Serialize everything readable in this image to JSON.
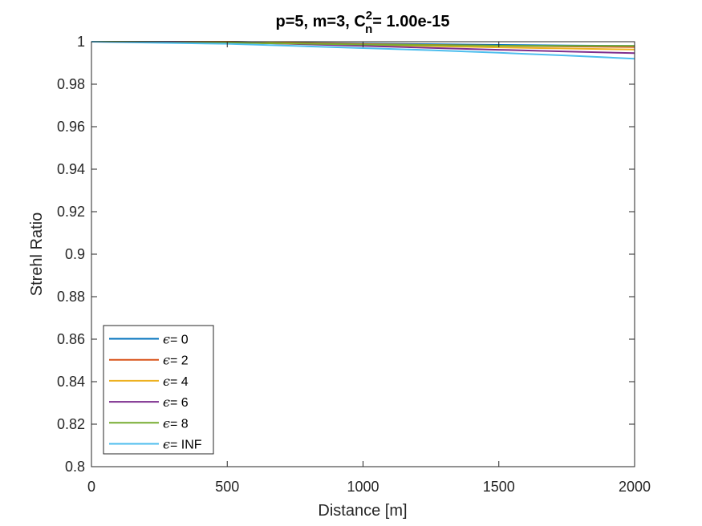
{
  "chart_data": {
    "type": "line",
    "title": {
      "prefix": "p=5, m=3, C",
      "superscript": "2",
      "subscript": "n",
      "suffix": "= 1.00e-15"
    },
    "xlabel": "Distance [m]",
    "ylabel": "Strehl Ratio",
    "xlim": [
      0,
      2000
    ],
    "ylim": [
      0.8,
      1.0
    ],
    "xticks": [
      0,
      500,
      1000,
      1500,
      2000
    ],
    "xtick_labels": [
      "0",
      "500",
      "1000",
      "1500",
      "2000"
    ],
    "yticks": [
      0.8,
      0.82,
      0.84,
      0.86,
      0.88,
      0.9,
      0.92,
      0.94,
      0.96,
      0.98,
      1.0
    ],
    "ytick_labels": [
      "0.8",
      "0.82",
      "0.84",
      "0.86",
      "0.88",
      "0.9",
      "0.92",
      "0.94",
      "0.96",
      "0.98",
      "1"
    ],
    "grid": false,
    "legend_position": "bottom-left",
    "legend_symbol": "ϵ",
    "series": [
      {
        "name": "= 0",
        "color": "#0072BD",
        "x": [
          0,
          250,
          500,
          750,
          1000,
          1250,
          1500,
          1750,
          2000
        ],
        "y": [
          1.0,
          1.0,
          1.0,
          0.9995,
          0.9991,
          0.9988,
          0.9985,
          0.9982,
          0.998
        ]
      },
      {
        "name": "= 2",
        "color": "#D95319",
        "x": [
          0,
          250,
          500,
          750,
          1000,
          1250,
          1500,
          1750,
          2000
        ],
        "y": [
          1.0,
          1.0,
          1.0,
          0.9994,
          0.9989,
          0.9985,
          0.9981,
          0.9978,
          0.9975
        ]
      },
      {
        "name": "= 4",
        "color": "#EDB120",
        "x": [
          0,
          250,
          500,
          750,
          1000,
          1250,
          1500,
          1750,
          2000
        ],
        "y": [
          1.0,
          1.0,
          0.9999,
          0.9992,
          0.9985,
          0.9979,
          0.9973,
          0.9968,
          0.9963
        ]
      },
      {
        "name": "= 6",
        "color": "#7E2F8E",
        "x": [
          0,
          250,
          500,
          750,
          1000,
          1250,
          1500,
          1750,
          2000
        ],
        "y": [
          1.0,
          1.0,
          0.9998,
          0.9989,
          0.998,
          0.9971,
          0.9962,
          0.9954,
          0.9946
        ]
      },
      {
        "name": "= 8",
        "color": "#77AC30",
        "x": [
          0,
          250,
          500,
          750,
          1000,
          1250,
          1500,
          1750,
          2000
        ],
        "y": [
          1.0,
          0.9999,
          0.9995,
          0.9991,
          0.9987,
          0.9984,
          0.9981,
          0.998,
          0.998
        ]
      },
      {
        "name": "= INF",
        "color": "#4DBEEE",
        "x": [
          0,
          250,
          500,
          750,
          1000,
          1250,
          1500,
          1750,
          2000
        ],
        "y": [
          1.0,
          0.9995,
          0.999,
          0.998,
          0.997,
          0.996,
          0.9948,
          0.9935,
          0.992
        ]
      }
    ]
  }
}
